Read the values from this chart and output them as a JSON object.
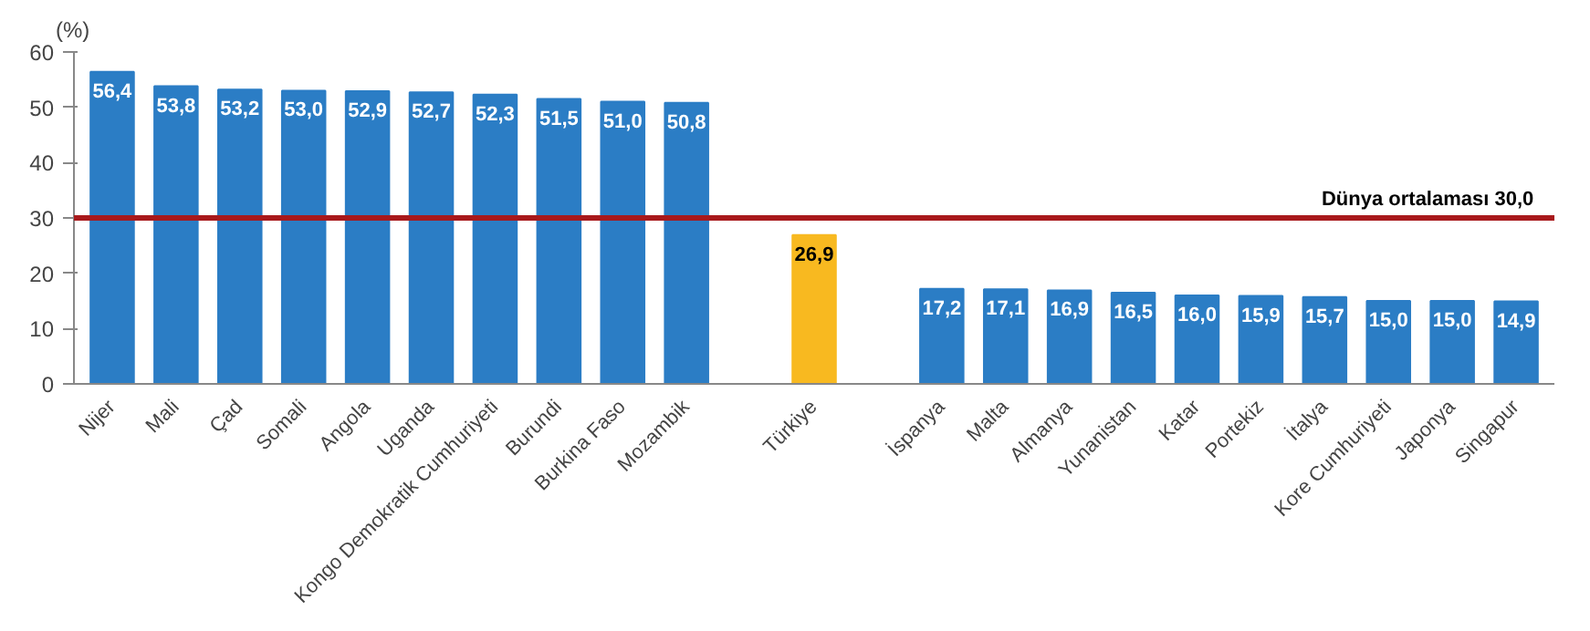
{
  "chart_data": {
    "type": "bar",
    "ylabel": "(%)",
    "categories": [
      "Nijer",
      "Mali",
      "Çad",
      "Somali",
      "Angola",
      "Uganda",
      "Kongo Demokratik Cumhuriyeti",
      "Burundi",
      "Burkina Faso",
      "Mozambik",
      null,
      "Türkiye",
      null,
      "İspanya",
      "Malta",
      "Almanya",
      "Yunanistan",
      "Katar",
      "Portekiz",
      "İtalya",
      "Kore Cumhuriyeti",
      "Japonya",
      "Singapur"
    ],
    "values": [
      56.4,
      53.8,
      53.2,
      53.0,
      52.9,
      52.7,
      52.3,
      51.5,
      51.0,
      50.8,
      null,
      26.9,
      null,
      17.2,
      17.1,
      16.9,
      16.5,
      16.0,
      15.9,
      15.7,
      15.0,
      15.0,
      14.9
    ],
    "value_labels": [
      "56,4",
      "53,8",
      "53,2",
      "53,0",
      "52,9",
      "52,7",
      "52,3",
      "51,5",
      "51,0",
      "50,8",
      null,
      "26,9",
      null,
      "17,2",
      "17,1",
      "16,9",
      "16,5",
      "16,0",
      "15,9",
      "15,7",
      "15,0",
      "15,0",
      "14,9"
    ],
    "colors": [
      "#2b7dc5",
      "#2b7dc5",
      "#2b7dc5",
      "#2b7dc5",
      "#2b7dc5",
      "#2b7dc5",
      "#2b7dc5",
      "#2b7dc5",
      "#2b7dc5",
      "#2b7dc5",
      "#2b7dc5",
      "#f8b920",
      "#2b7dc5",
      "#2b7dc5",
      "#2b7dc5",
      "#2b7dc5",
      "#2b7dc5",
      "#2b7dc5",
      "#2b7dc5",
      "#2b7dc5",
      "#2b7dc5",
      "#2b7dc5",
      "#2b7dc5"
    ],
    "ylim": [
      0,
      60
    ],
    "yticks": [
      0,
      10,
      20,
      30,
      40,
      50,
      60
    ],
    "ref_lines": [
      {
        "axis": "y",
        "value": 30,
        "label": "Dünya ortalaması   30,0",
        "color": "#a8191c"
      }
    ],
    "grid": false
  }
}
